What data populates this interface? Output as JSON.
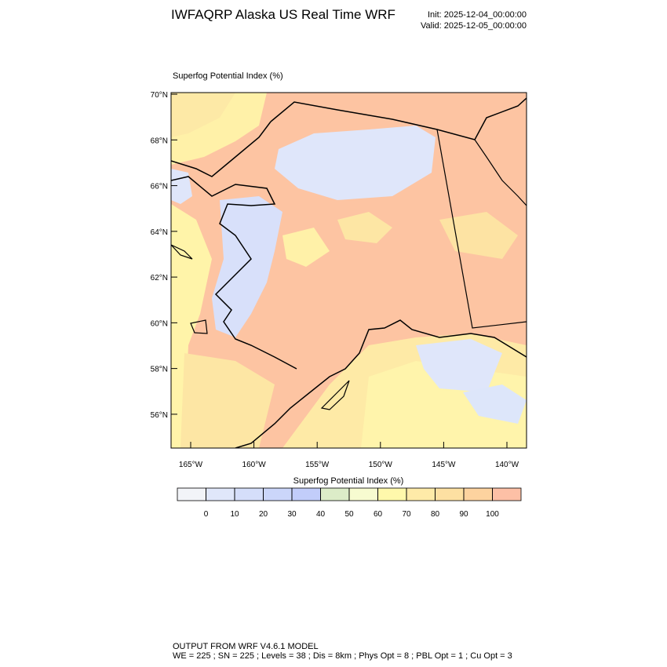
{
  "header": {
    "title": "IWFAQRP Alaska US Real Time WRF",
    "init": "Init: 2025-12-04_00:00:00",
    "valid": "Valid: 2025-12-05_00:00:00"
  },
  "map": {
    "label": "Superfog Potential Index   (%)",
    "latlim": [
      54.52,
      70.07
    ],
    "lonlim": [
      -166.55,
      -138.45
    ],
    "lat_ticks": [
      {
        "value": 70,
        "label": "70°N"
      },
      {
        "value": 68,
        "label": "68°N"
      },
      {
        "value": 66,
        "label": "66°N"
      },
      {
        "value": 64,
        "label": "64°N"
      },
      {
        "value": 62,
        "label": "62°N"
      },
      {
        "value": 60,
        "label": "60°N"
      },
      {
        "value": 58,
        "label": "58°N"
      },
      {
        "value": 56,
        "label": "56°N"
      }
    ],
    "lon_ticks": [
      {
        "value": -165,
        "label": "165°W"
      },
      {
        "value": -160,
        "label": "160°W"
      },
      {
        "value": -155,
        "label": "155°W"
      },
      {
        "value": -150,
        "label": "150°W"
      },
      {
        "value": -145,
        "label": "145°W"
      },
      {
        "value": -140,
        "label": "140°W"
      }
    ]
  },
  "colorbar": {
    "title": "Superfog Potential Index  (%)",
    "levels": [
      0,
      10,
      20,
      30,
      40,
      50,
      60,
      70,
      80,
      90,
      100
    ],
    "colors": [
      "#f2f4f8",
      "#e0e7fa",
      "#d5defa",
      "#cbd6fa",
      "#c2cdfa",
      "#dcecc8",
      "#f7fbd0",
      "#fff8ab",
      "#feeaa8",
      "#fde0a2",
      "#fdd39f",
      "#fdc0a6"
    ]
  },
  "footer": {
    "line1": "OUTPUT FROM WRF V4.6.1 MODEL",
    "line2": "WE = 225 ; SN = 225 ; Levels = 38 ; Dis = 8km ; Phys Opt = 8 ; PBL Opt = 1 ; Cu Opt = 3"
  }
}
